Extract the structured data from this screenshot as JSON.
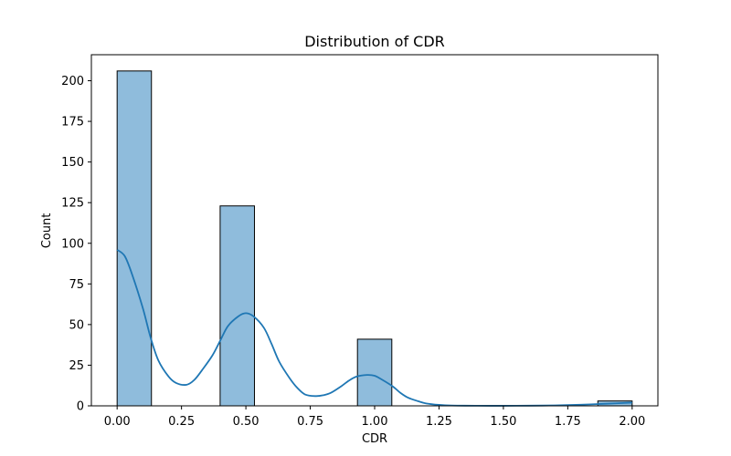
{
  "chart_data": {
    "type": "bar",
    "title": "Distribution of CDR",
    "xlabel": "CDR",
    "ylabel": "Count",
    "xlim": [
      -0.1,
      2.1
    ],
    "ylim": [
      0,
      216
    ],
    "xticks": [
      0.0,
      0.25,
      0.5,
      0.75,
      1.0,
      1.25,
      1.5,
      1.75,
      2.0
    ],
    "xtick_labels": [
      "0.00",
      "0.25",
      "0.50",
      "0.75",
      "1.00",
      "1.25",
      "1.50",
      "1.75",
      "2.00"
    ],
    "yticks": [
      0,
      25,
      50,
      75,
      100,
      125,
      150,
      175,
      200
    ],
    "ytick_labels": [
      "0",
      "25",
      "50",
      "75",
      "100",
      "125",
      "150",
      "175",
      "200"
    ],
    "grid": false,
    "bins": [
      {
        "x0": 0.0,
        "x1": 0.1333,
        "count": 206
      },
      {
        "x0": 0.4,
        "x1": 0.5333,
        "count": 123
      },
      {
        "x0": 0.9333,
        "x1": 1.0667,
        "count": 41
      },
      {
        "x0": 1.8667,
        "x1": 2.0,
        "count": 3
      }
    ],
    "kde": {
      "x": [
        0.0,
        0.03,
        0.06,
        0.1,
        0.13,
        0.16,
        0.2,
        0.23,
        0.27,
        0.3,
        0.33,
        0.37,
        0.4,
        0.43,
        0.47,
        0.5,
        0.53,
        0.57,
        0.6,
        0.63,
        0.67,
        0.7,
        0.73,
        0.77,
        0.8,
        0.83,
        0.87,
        0.9,
        0.93,
        0.97,
        1.0,
        1.03,
        1.07,
        1.1,
        1.13,
        1.17,
        1.2,
        1.25,
        1.3,
        1.4,
        1.5,
        1.6,
        1.7,
        1.8,
        1.9,
        2.0
      ],
      "y": [
        96,
        92,
        80,
        60,
        42,
        28,
        18,
        14,
        13,
        16,
        22,
        31,
        40,
        49,
        55,
        57,
        55,
        48,
        38,
        27,
        17,
        11,
        7,
        6,
        6.5,
        8,
        12,
        15.5,
        18,
        19,
        18.5,
        16,
        12,
        8,
        5,
        2.8,
        1.5,
        0.6,
        0.2,
        0.05,
        0.03,
        0.1,
        0.3,
        0.7,
        1.3,
        2
      ]
    },
    "colors": {
      "bar_fill": "#8fbcdc",
      "bar_edge": "#000000",
      "kde_line": "#1f77b4"
    }
  }
}
